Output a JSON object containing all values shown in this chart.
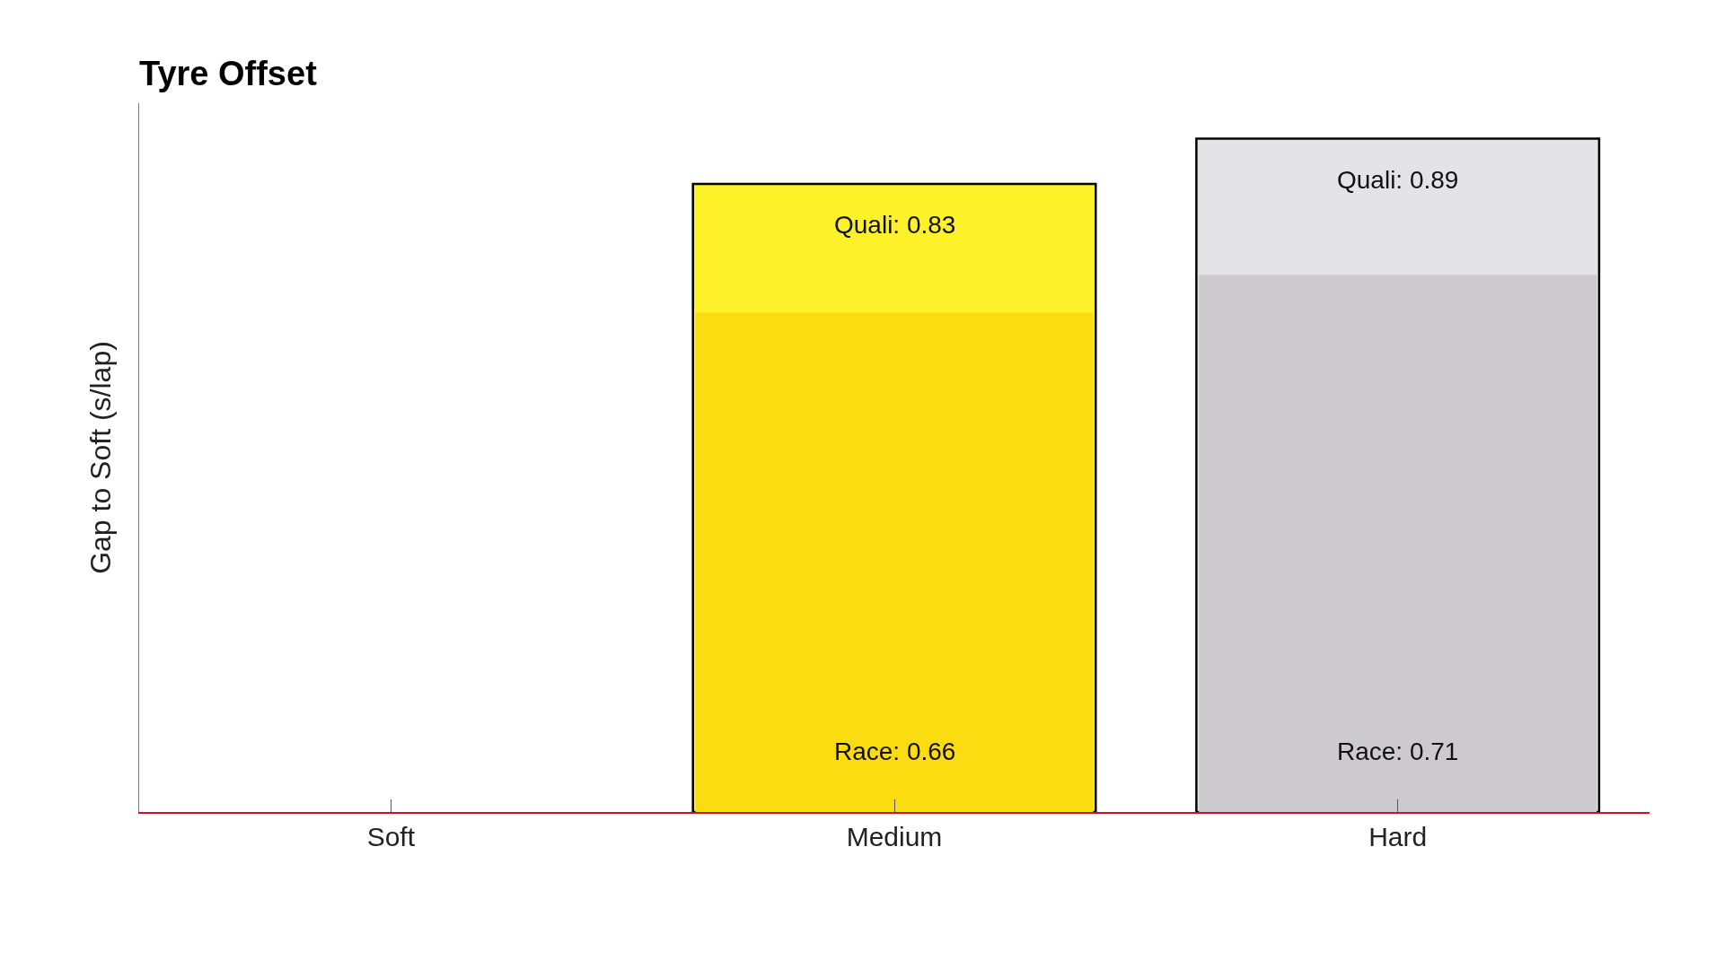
{
  "chart_data": {
    "type": "bar",
    "title": "Tyre Offset",
    "ylabel": "Gap to Soft (s/lap)",
    "categories": [
      "Soft",
      "Medium",
      "Hard"
    ],
    "series": [
      {
        "colors": [
          "#fdf22a",
          "#fdf22a",
          "#e4e3e6"
        ],
        "values": [
          null,
          0.83,
          0.89
        ],
        "value_labels": [
          null,
          "Quali: 0.83",
          "Quali: 0.89"
        ]
      },
      {
        "colors": [
          "#fbdc10",
          "#fbdc10",
          "#cccacd"
        ],
        "values": [
          null,
          0.66,
          0.71
        ],
        "value_labels": [
          null,
          "Race: 0.66",
          "Race: 0.71"
        ]
      }
    ],
    "stacked": false,
    "tick_labels": "x",
    "grid": false,
    "legend": false
  }
}
